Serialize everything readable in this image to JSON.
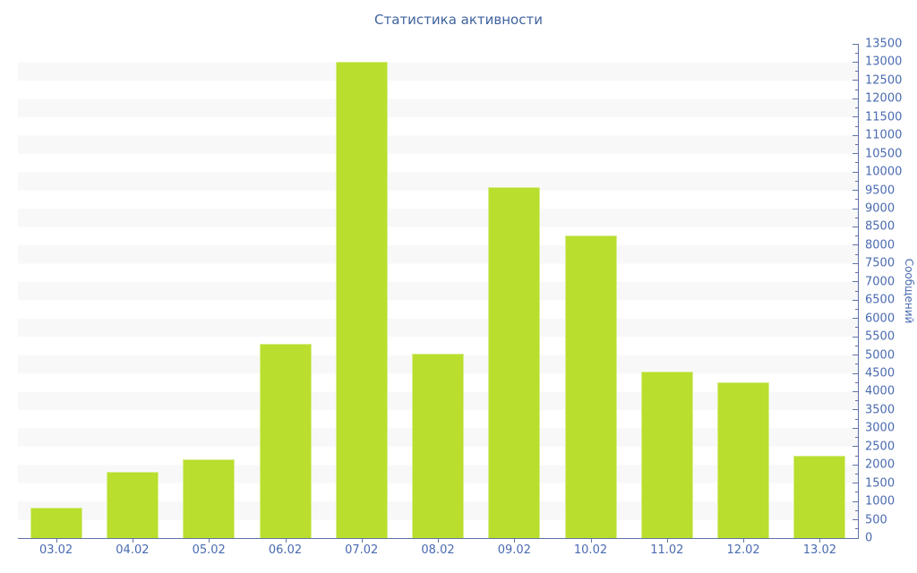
{
  "chart_data": {
    "type": "bar",
    "title": "Статистика активности",
    "xlabel": "",
    "ylabel": "Сообщений",
    "y_axis_side": "right",
    "categories": [
      "03.02",
      "04.02",
      "05.02",
      "06.02",
      "07.02",
      "08.02",
      "09.02",
      "10.02",
      "11.02",
      "12.02",
      "13.02"
    ],
    "values": [
      840,
      1800,
      2150,
      5300,
      13000,
      5050,
      9600,
      8270,
      4550,
      4250,
      2250
    ],
    "ylim": [
      0,
      13500
    ],
    "y_major_step": 500,
    "y_minor_step": 250,
    "y_tick_labels": [
      "0",
      "500",
      "1000",
      "1500",
      "2000",
      "2500",
      "3000",
      "3500",
      "4000",
      "4500",
      "5000",
      "5500",
      "6000",
      "6500",
      "7000",
      "7500",
      "8000",
      "8500",
      "9000",
      "9500",
      "10000",
      "10500",
      "11000",
      "11500",
      "12000",
      "12500",
      "13000",
      "13500"
    ],
    "grid": "alternating horizontal 500-unit bands",
    "legend": "none",
    "colors": {
      "background": "#ffffff",
      "bar": "#b9de2d",
      "bar_edge": "#d7ee8e",
      "band": "#f8f8f9",
      "axis": "#6272a7",
      "tick_label": "#4a6bb0",
      "title": "#40639f"
    }
  }
}
